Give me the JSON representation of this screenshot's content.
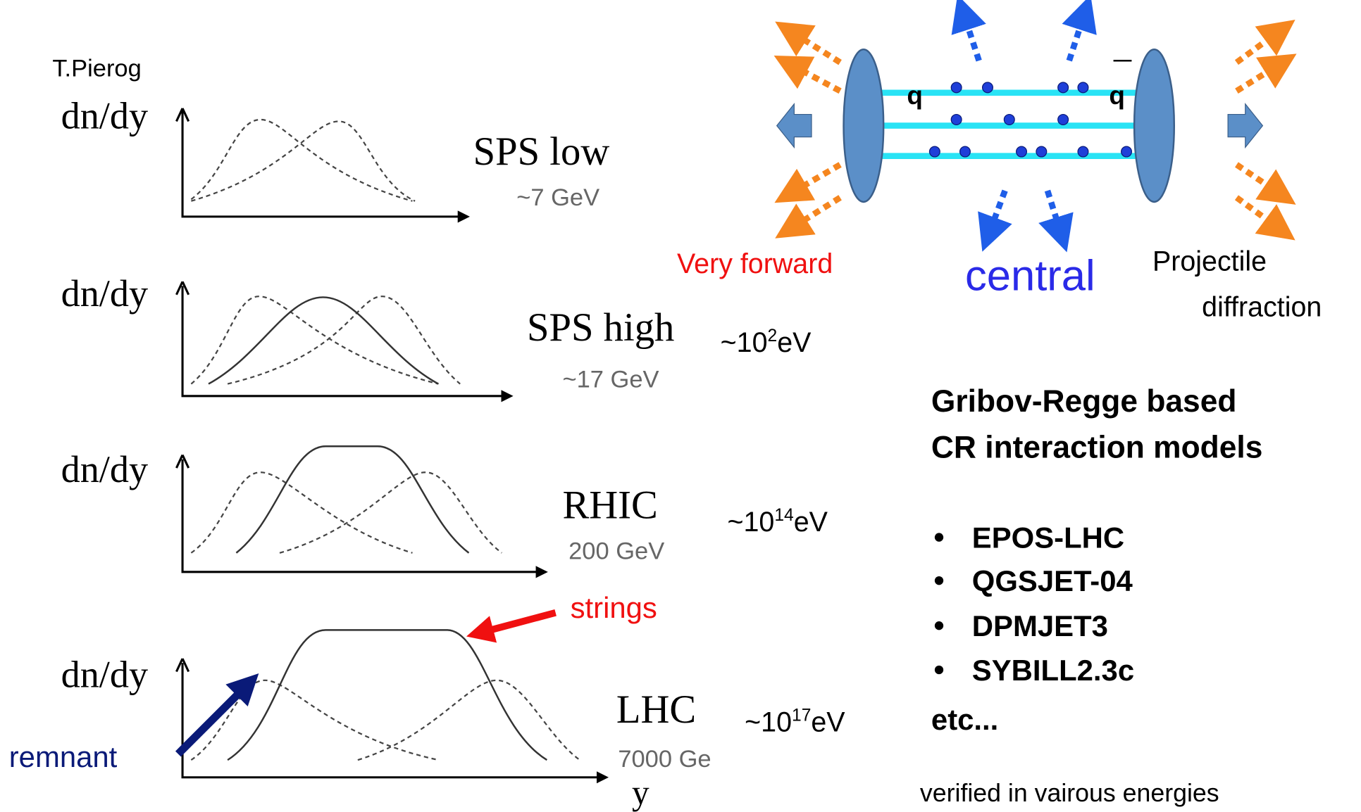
{
  "author": "T.Pierog",
  "panels": [
    {
      "ylabel": "dn/dy",
      "name": "SPS low",
      "energy": "~7 GeV"
    },
    {
      "ylabel": "dn/dy",
      "name": "SPS high",
      "energy": "~17 GeV",
      "cr_energy": {
        "base": "~10",
        "exp": "2",
        "unit": "eV"
      }
    },
    {
      "ylabel": "dn/dy",
      "name": "RHIC",
      "energy": "200 GeV",
      "cr_energy": {
        "base": "~10",
        "exp": "14",
        "unit": "eV"
      }
    },
    {
      "ylabel": "dn/dy",
      "name": "LHC",
      "energy": "7000 Ge",
      "xlabel": "y",
      "cr_energy": {
        "base": "~10",
        "exp": "17",
        "unit": "eV"
      }
    }
  ],
  "annotations": {
    "strings": "strings",
    "remnant": "remnant"
  },
  "diagram": {
    "quark_left": "q",
    "quark_right": "q",
    "very_forward": "Very forward",
    "central": "central",
    "projectile_diffraction": [
      "Projectile",
      "diffraction"
    ]
  },
  "models": {
    "heading": [
      "Gribov-Regge based",
      "CR interaction models"
    ],
    "items": [
      "EPOS-LHC",
      "QGSJET-04",
      "DPMJET3",
      "SYBILL2.3c"
    ],
    "etc": "etc...",
    "note": "verified in vairous energies"
  }
}
